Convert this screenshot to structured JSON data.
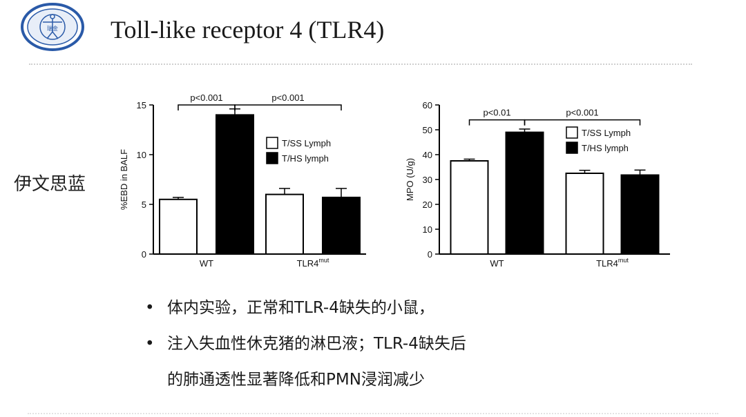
{
  "slide": {
    "title": "Toll-like receptor 4 (TLR4)",
    "side_label": "伊文思蓝",
    "logo": {
      "icon": "university-seal-icon",
      "text": "瑞金",
      "color": "#2a5aa8"
    },
    "bullets": [
      "体内实验，正常和TLR-4缺失的小鼠，",
      "注入失血性休克猪的淋巴液；TLR-4缺失后"
    ],
    "bullet_continuation": "的肺通透性显著降低和PMN浸润减少",
    "bullet_symbol": "•"
  },
  "chart_data": [
    {
      "type": "bar",
      "title": "",
      "ylabel": "%EBD in BALF",
      "xlabel": "",
      "ylim": [
        0,
        15
      ],
      "yticks": [
        0,
        5,
        10,
        15
      ],
      "groups": [
        {
          "label": "WT",
          "superscript": ""
        },
        {
          "label": "TLR4",
          "superscript": "mut"
        }
      ],
      "series": [
        {
          "name": "T/SS Lymph",
          "fill": "#ffffff",
          "values": [
            5.5,
            6.0
          ],
          "errors": [
            0.2,
            0.6
          ]
        },
        {
          "name": "T/HS lymph",
          "fill": "#000000",
          "values": [
            14.0,
            5.7
          ],
          "errors": [
            0.6,
            0.9
          ]
        }
      ],
      "legend_position": "top-right",
      "annotations": [
        {
          "text": "p<0.001",
          "from": [
            0,
            0
          ],
          "to": [
            0,
            1
          ],
          "y": 15.0
        },
        {
          "text": "p<0.001",
          "from": [
            0,
            1
          ],
          "to": [
            1,
            1
          ],
          "y": 15.0
        }
      ]
    },
    {
      "type": "bar",
      "title": "",
      "ylabel": "MPO (U/g)",
      "xlabel": "",
      "ylim": [
        0,
        60
      ],
      "yticks": [
        0,
        10,
        20,
        30,
        40,
        50,
        60
      ],
      "groups": [
        {
          "label": "WT",
          "superscript": ""
        },
        {
          "label": "TLR4",
          "superscript": "mut"
        }
      ],
      "series": [
        {
          "name": "T/SS Lymph",
          "fill": "#ffffff",
          "values": [
            37.5,
            32.5
          ],
          "errors": [
            0.7,
            1.2
          ]
        },
        {
          "name": "T/HS lymph",
          "fill": "#000000",
          "values": [
            49.0,
            31.8
          ],
          "errors": [
            1.3,
            2.0
          ]
        }
      ],
      "legend_position": "top-right",
      "annotations": [
        {
          "text": "p<0.01",
          "from": [
            0,
            0
          ],
          "to": [
            0,
            1
          ],
          "y": 54.0
        },
        {
          "text": "p<0.001",
          "from": [
            0,
            1
          ],
          "to": [
            1,
            1
          ],
          "y": 54.0
        }
      ]
    }
  ]
}
